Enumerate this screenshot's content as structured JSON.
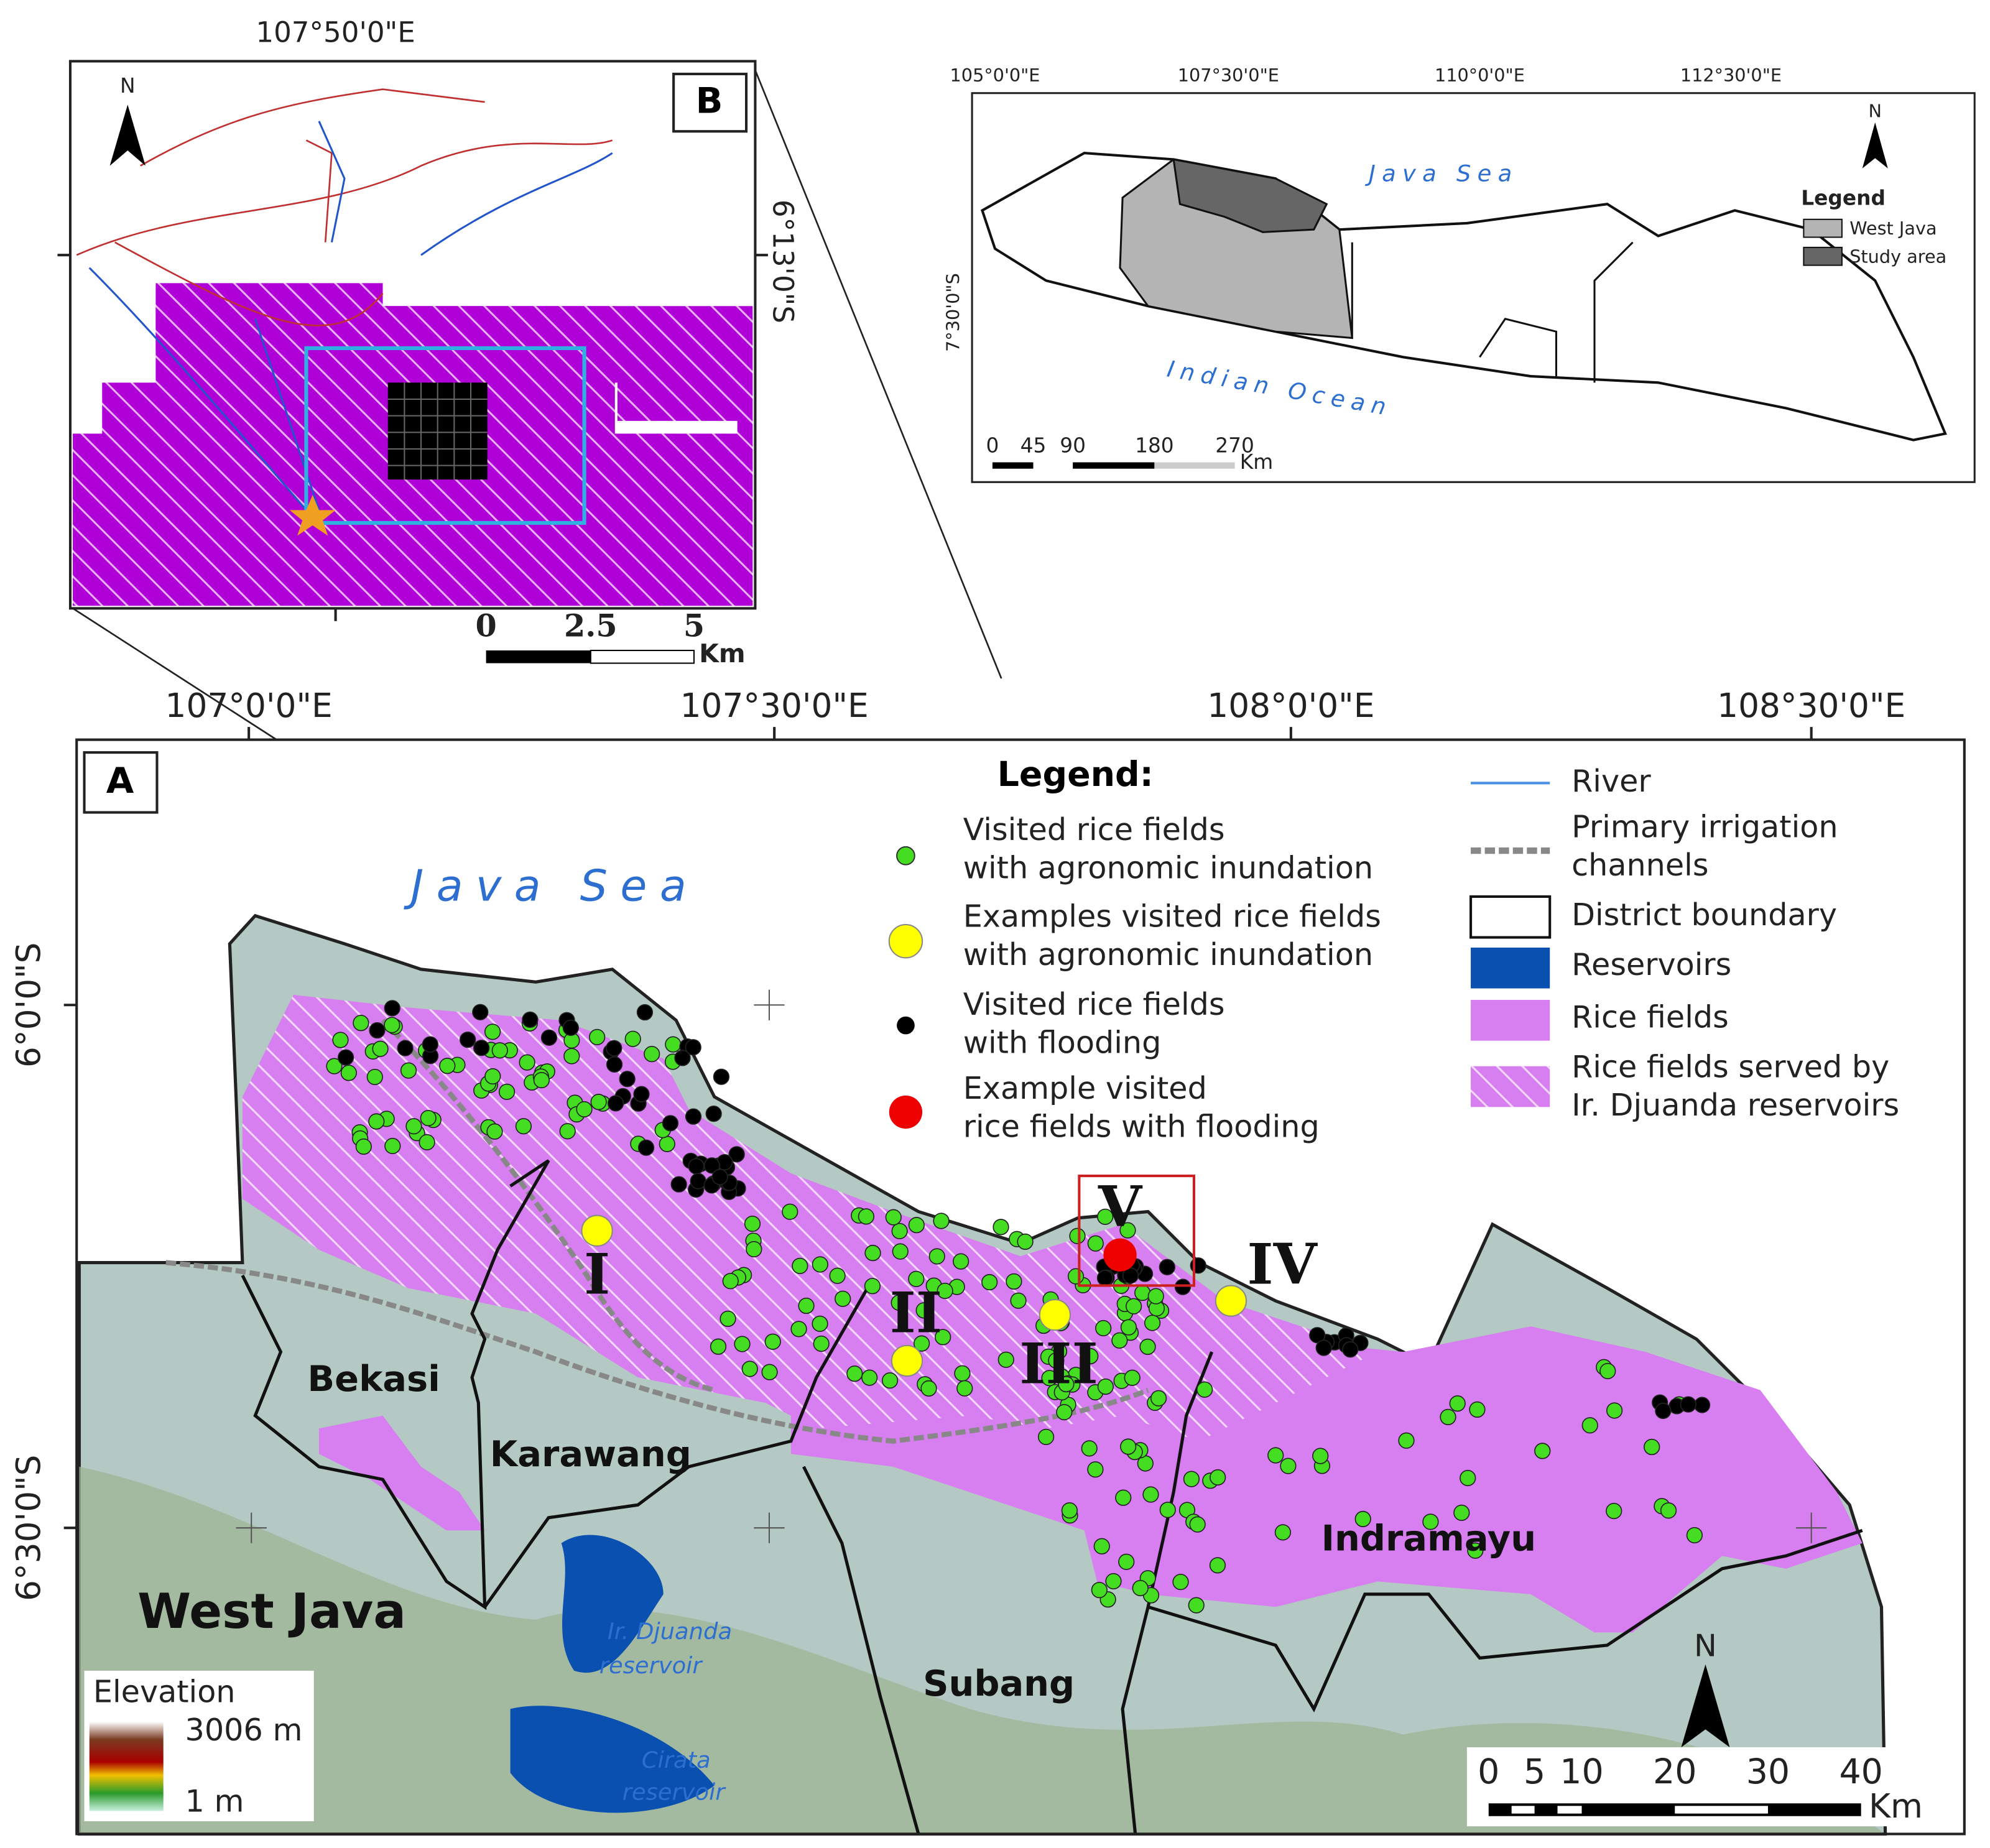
{
  "inset_b": {
    "label": "B",
    "north": "N",
    "lon_label": "107°50'0\"E",
    "lat_label": "6°13'0\"S",
    "scale_labels": [
      "0",
      "2.5",
      "5"
    ],
    "scale_unit": "Km"
  },
  "inset_overview": {
    "north": "N",
    "lon_labels": [
      "105°0'0\"E",
      "107°30'0\"E",
      "110°0'0\"E",
      "112°30'0\"E"
    ],
    "lat_label": "7°30'0\"S",
    "sea_north": "Java Sea",
    "sea_south": "Indian Ocean",
    "legend_title": "Legend",
    "legend_items": [
      "West Java",
      "Study area"
    ],
    "scale_labels": [
      "0",
      "45",
      "90",
      "180",
      "270"
    ],
    "scale_unit": "Km"
  },
  "main_map": {
    "label": "A",
    "north": "N",
    "lon_labels": [
      "107°0'0\"E",
      "107°30'0\"E",
      "108°0'0\"E",
      "108°30'0\"E"
    ],
    "lat_labels": [
      "6°0'0\"S",
      "6°30'0\"S"
    ],
    "sea": "Java Sea",
    "legend_title": "Legend:",
    "legend_left": [
      [
        "Visited rice fields",
        "with agronomic inundation"
      ],
      [
        "Examples visited rice fields",
        "with agronomic inundation"
      ],
      [
        "Visited rice fields",
        "with flooding"
      ],
      [
        "Example visited",
        "rice fields with flooding"
      ]
    ],
    "legend_right": [
      [
        "River"
      ],
      [
        "Primary irrigation",
        "channels"
      ],
      [
        "District boundary"
      ],
      [
        "Reservoirs"
      ],
      [
        "Rice fields"
      ],
      [
        "Rice fields served by",
        "Ir. Djuanda reservoirs"
      ]
    ],
    "places": [
      "Bekasi",
      "Karawang",
      "West Java",
      "Subang",
      "Indramayu"
    ],
    "reservoirs": [
      [
        "Ir. Djuanda",
        "reservoir"
      ],
      [
        "Cirata",
        "reservoir"
      ]
    ],
    "sites": [
      "I",
      "II",
      "III",
      "IV",
      "V"
    ],
    "elevation_title": "Elevation",
    "elevation_max": "3006 m",
    "elevation_min": "1 m",
    "scale_labels": [
      "0",
      "5",
      "10",
      "20",
      "30",
      "40"
    ],
    "scale_unit": "Km"
  }
}
